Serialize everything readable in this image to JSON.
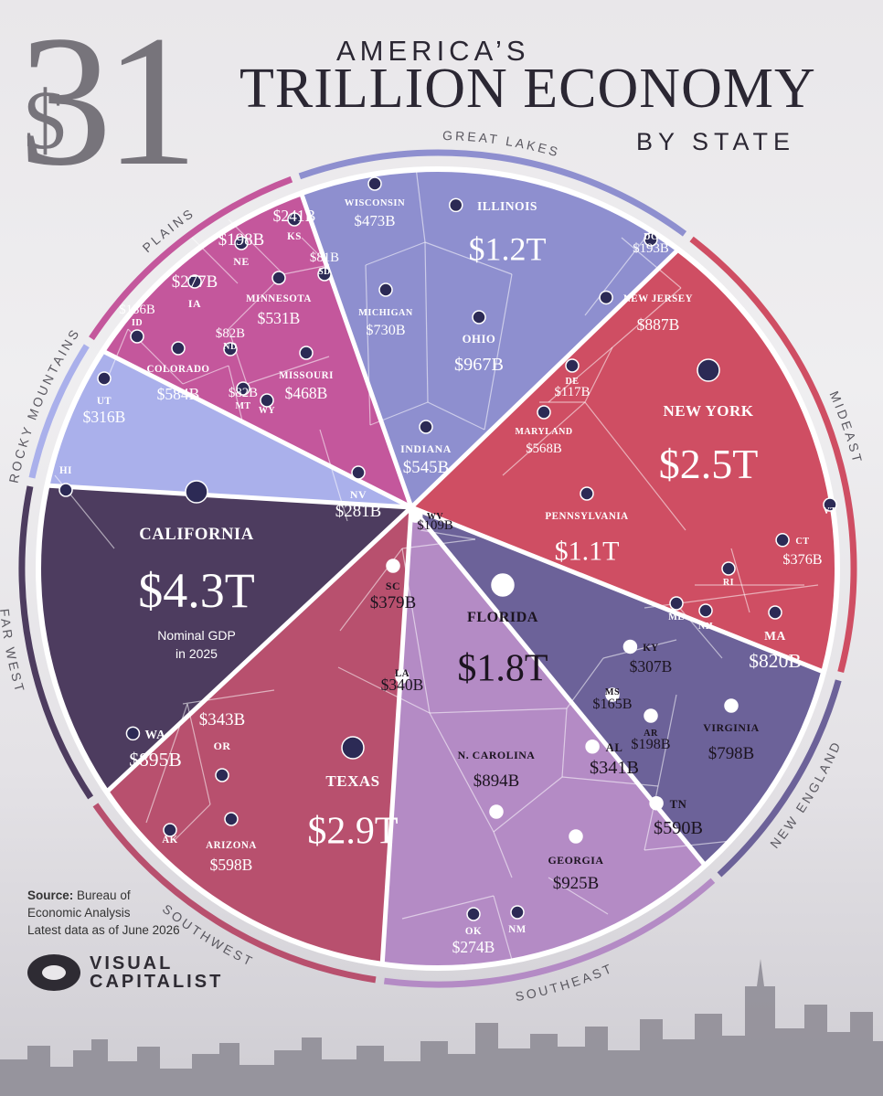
{
  "header": {
    "big_number": "31",
    "dollar": "$",
    "line1": "AMERICA’S",
    "line2": "TRILLION ECONOMY",
    "line3": "BY STATE"
  },
  "source": {
    "label": "Source:",
    "text1": "Bureau of",
    "text2": "Economic Analysis",
    "text3": "Latest data as of June 2026"
  },
  "logo": {
    "line1": "VISUAL",
    "line2": "CAPITALIST"
  },
  "colors": {
    "far_west": "#4d3c5f",
    "rocky_mountains": "#aab0eb",
    "plains": "#c4579c",
    "great_lakes": "#8e8fcf",
    "mideast": "#cf4e63",
    "new_england": "#6c6299",
    "southeast": "#b48bc5",
    "southwest": "#b8506e",
    "separator": "#ffffff"
  },
  "chart_data": {
    "type": "voronoi-treemap",
    "title": "America’s $31 Trillion Economy by State",
    "note": "Nominal GDP in 2025",
    "unit": "USD",
    "regions": [
      {
        "name": "GREAT LAKES",
        "states": [
          {
            "label": "WISCONSIN",
            "value": "$473B"
          },
          {
            "label": "ILLINOIS",
            "value": "$1.2T"
          },
          {
            "label": "MICHIGAN",
            "value": "$730B"
          },
          {
            "label": "OHIO",
            "value": "$967B"
          },
          {
            "label": "INDIANA",
            "value": "$545B"
          }
        ]
      },
      {
        "name": "MIDEAST",
        "states": [
          {
            "label": "DC",
            "value": "$193B"
          },
          {
            "label": "NEW JERSEY",
            "value": "$887B"
          },
          {
            "label": "DE",
            "value": "$117B"
          },
          {
            "label": "MARYLAND",
            "value": "$568B"
          },
          {
            "label": "NEW YORK",
            "value": "$2.5T"
          },
          {
            "label": "PENNSYLVANIA",
            "value": "$1.1T"
          }
        ]
      },
      {
        "name": "NEW ENGLAND",
        "states": [
          {
            "label": "VT",
            "value": ""
          },
          {
            "label": "CT",
            "value": "$376B"
          },
          {
            "label": "RI",
            "value": ""
          },
          {
            "label": "ME",
            "value": ""
          },
          {
            "label": "NH",
            "value": ""
          },
          {
            "label": "MA",
            "value": "$820B"
          }
        ]
      },
      {
        "name": "SOUTHEAST",
        "states": [
          {
            "label": "WV",
            "value": "$109B"
          },
          {
            "label": "SC",
            "value": "$379B"
          },
          {
            "label": "FLORIDA",
            "value": "$1.8T"
          },
          {
            "label": "KY",
            "value": "$307B"
          },
          {
            "label": "LA",
            "value": "$340B"
          },
          {
            "label": "MS",
            "value": "$165B"
          },
          {
            "label": "AR",
            "value": "$198B"
          },
          {
            "label": "VIRGINIA",
            "value": "$798B"
          },
          {
            "label": "N. CAROLINA",
            "value": "$894B"
          },
          {
            "label": "AL",
            "value": "$341B"
          },
          {
            "label": "TN",
            "value": "$590B"
          },
          {
            "label": "GEORGIA",
            "value": "$925B"
          }
        ]
      },
      {
        "name": "SOUTHWEST",
        "states": [
          {
            "label": "TEXAS",
            "value": "$2.9T"
          },
          {
            "label": "ARIZONA",
            "value": "$598B"
          },
          {
            "label": "OK",
            "value": "$274B"
          },
          {
            "label": "NM",
            "value": ""
          }
        ]
      },
      {
        "name": "FAR WEST",
        "states": [
          {
            "label": "HI",
            "value": ""
          },
          {
            "label": "CALIFORNIA",
            "value": "$4.3T"
          },
          {
            "label": "NV",
            "value": "$281B"
          },
          {
            "label": "WA",
            "value": "$895B"
          },
          {
            "label": "OR",
            "value": "$343B"
          },
          {
            "label": "AK",
            "value": ""
          }
        ]
      },
      {
        "name": "ROCKY MOUNTAINS",
        "states": [
          {
            "label": "ID",
            "value": "$136B"
          },
          {
            "label": "COLORADO",
            "value": "$584B"
          },
          {
            "label": "UT",
            "value": "$316B"
          },
          {
            "label": "MT",
            "value": "$82B"
          },
          {
            "label": "WY",
            "value": ""
          }
        ]
      },
      {
        "name": "PLAINS",
        "states": [
          {
            "label": "KS",
            "value": "$241B"
          },
          {
            "label": "NE",
            "value": "$198B"
          },
          {
            "label": "SD",
            "value": "$81B"
          },
          {
            "label": "IA",
            "value": "$277B"
          },
          {
            "label": "MINNESOTA",
            "value": "$531B"
          },
          {
            "label": "ND",
            "value": "$82B"
          },
          {
            "label": "MISSOURI",
            "value": "$468B"
          }
        ]
      }
    ]
  }
}
